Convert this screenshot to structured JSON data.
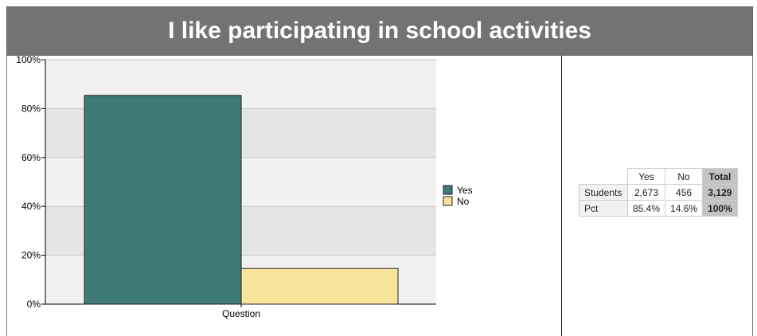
{
  "header": {
    "title": "I like participating in school activities"
  },
  "chart_data": {
    "type": "bar",
    "categories": [
      "Question"
    ],
    "series": [
      {
        "name": "Yes",
        "values": [
          85.4
        ],
        "color": "#3f7a78"
      },
      {
        "name": "No",
        "values": [
          14.6
        ],
        "color": "#f9e29a"
      }
    ],
    "ylim": [
      0,
      100
    ],
    "y_ticks": [
      "0%",
      "20%",
      "40%",
      "60%",
      "80%",
      "100%"
    ],
    "xlabel": "",
    "ylabel": "",
    "legend": "right",
    "grid": true
  },
  "table": {
    "columns": [
      "Yes",
      "No",
      "Total"
    ],
    "rows": [
      {
        "label": "Students",
        "values": [
          "2,673",
          "456"
        ],
        "total": "3,129"
      },
      {
        "label": "Pct",
        "values": [
          "85.4%",
          "14.6%"
        ],
        "total": "100%"
      }
    ]
  }
}
